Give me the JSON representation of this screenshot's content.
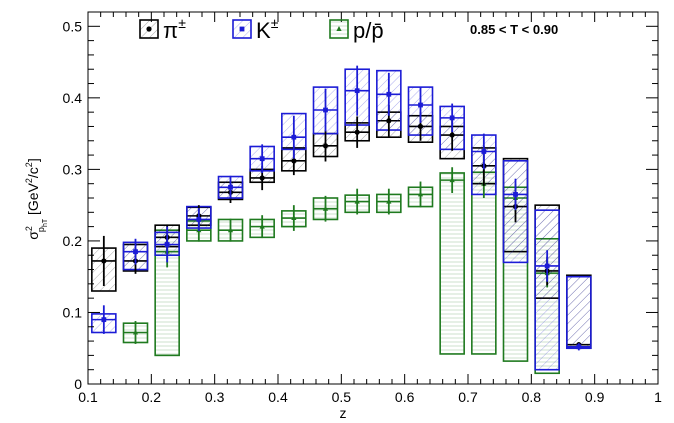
{
  "chart_data": {
    "type": "scatter",
    "title": "",
    "annotation": "0.85 < T < 0.90",
    "xlabel": "z",
    "ylabel_main": "σ",
    "ylabel_sup": "2",
    "ylabel_sub": "p",
    "ylabel_subsub": "hT",
    "ylabel_units": " [GeV",
    "ylabel_units_sup": "2",
    "ylabel_units_mid": "/c",
    "ylabel_units_sup2": "2",
    "ylabel_units_end": "]",
    "xlim": [
      0.1,
      1.0
    ],
    "ylim": [
      0.0,
      0.52
    ],
    "x_ticks": [
      0.1,
      0.2,
      0.3,
      0.4,
      0.5,
      0.6,
      0.7,
      0.8,
      0.9,
      1.0
    ],
    "x_tick_labels": [
      "0.1",
      "0.2",
      "0.3",
      "0.4",
      "0.5",
      "0.6",
      "0.7",
      "0.8",
      "0.9",
      "1"
    ],
    "y_ticks": [
      0.0,
      0.1,
      0.2,
      0.3,
      0.4,
      0.5
    ],
    "y_tick_labels": [
      "0",
      "0.1",
      "0.2",
      "0.3",
      "0.4",
      "0.5"
    ],
    "grid": false,
    "legend_position": "top",
    "series": [
      {
        "name": "π",
        "name_sup": "±",
        "color": "#000000",
        "marker": "circle",
        "box_fill": "hatch-diagonal",
        "x": [
          0.125,
          0.175,
          0.225,
          0.275,
          0.325,
          0.375,
          0.425,
          0.475,
          0.525,
          0.575,
          0.625,
          0.675,
          0.725,
          0.775,
          0.825,
          0.875
        ],
        "y": [
          0.172,
          0.172,
          0.205,
          0.235,
          0.268,
          0.288,
          0.312,
          0.333,
          0.352,
          0.368,
          0.36,
          0.348,
          0.305,
          0.248,
          0.158,
          0.055
        ],
        "err": [
          0.035,
          0.018,
          0.018,
          0.015,
          0.015,
          0.017,
          0.02,
          0.022,
          0.022,
          0.022,
          0.02,
          0.022,
          0.028,
          0.022,
          0.02,
          0.003
        ],
        "sys_low": [
          0.13,
          0.158,
          0.192,
          0.222,
          0.258,
          0.282,
          0.298,
          0.318,
          0.34,
          0.345,
          0.338,
          0.315,
          0.28,
          0.185,
          0.12,
          0.05
        ],
        "sys_high": [
          0.19,
          0.195,
          0.222,
          0.247,
          0.282,
          0.3,
          0.33,
          0.35,
          0.365,
          0.38,
          0.375,
          0.36,
          0.33,
          0.315,
          0.25,
          0.152
        ]
      },
      {
        "name": "K",
        "name_sup": "±",
        "color": "#1c1cd6",
        "marker": "square",
        "box_fill": "hatch-diagonal",
        "x": [
          0.125,
          0.175,
          0.225,
          0.275,
          0.325,
          0.375,
          0.425,
          0.475,
          0.525,
          0.575,
          0.625,
          0.675,
          0.725,
          0.775,
          0.825,
          0.875
        ],
        "y": [
          0.09,
          0.185,
          0.195,
          0.23,
          0.275,
          0.315,
          0.345,
          0.383,
          0.41,
          0.405,
          0.39,
          0.372,
          0.325,
          0.265,
          0.165,
          0.052
        ],
        "err": [
          0.02,
          0.018,
          0.025,
          0.016,
          0.016,
          0.02,
          0.03,
          0.03,
          0.035,
          0.03,
          0.025,
          0.02,
          0.025,
          0.022,
          0.022,
          0.005
        ],
        "sys_low": [
          0.072,
          0.16,
          0.18,
          0.218,
          0.26,
          0.298,
          0.328,
          0.35,
          0.362,
          0.355,
          0.348,
          0.328,
          0.265,
          0.17,
          0.02,
          0.05
        ],
        "sys_high": [
          0.098,
          0.198,
          0.212,
          0.248,
          0.29,
          0.332,
          0.378,
          0.415,
          0.44,
          0.438,
          0.415,
          0.388,
          0.348,
          0.312,
          0.243,
          0.15
        ]
      },
      {
        "name": "p/p̄",
        "name_sup": "",
        "color": "#1f7a1f",
        "marker": "triangle",
        "box_fill": "hatch-horizontal",
        "x": [
          0.125,
          0.175,
          0.225,
          0.275,
          0.325,
          0.375,
          0.425,
          0.475,
          0.525,
          0.575,
          0.625,
          0.675,
          0.725,
          0.775,
          0.825,
          0.875
        ],
        "y": [
          null,
          0.072,
          0.185,
          0.215,
          0.215,
          0.22,
          0.232,
          0.245,
          0.255,
          0.255,
          0.265,
          0.285,
          0.28,
          0.26,
          0.155,
          null
        ],
        "err": [
          null,
          0.016,
          0.022,
          0.016,
          0.016,
          0.016,
          0.018,
          0.018,
          0.018,
          0.018,
          0.018,
          0.018,
          0.02,
          0.02,
          0.02,
          null
        ],
        "sys_low": [
          null,
          0.058,
          0.04,
          0.2,
          0.2,
          0.205,
          0.22,
          0.23,
          0.24,
          0.24,
          0.248,
          0.042,
          0.042,
          0.032,
          0.015,
          null
        ],
        "sys_high": [
          null,
          0.085,
          0.215,
          0.228,
          0.23,
          0.23,
          0.242,
          0.26,
          0.264,
          0.265,
          0.275,
          0.295,
          0.296,
          0.275,
          0.203,
          null
        ]
      }
    ]
  }
}
